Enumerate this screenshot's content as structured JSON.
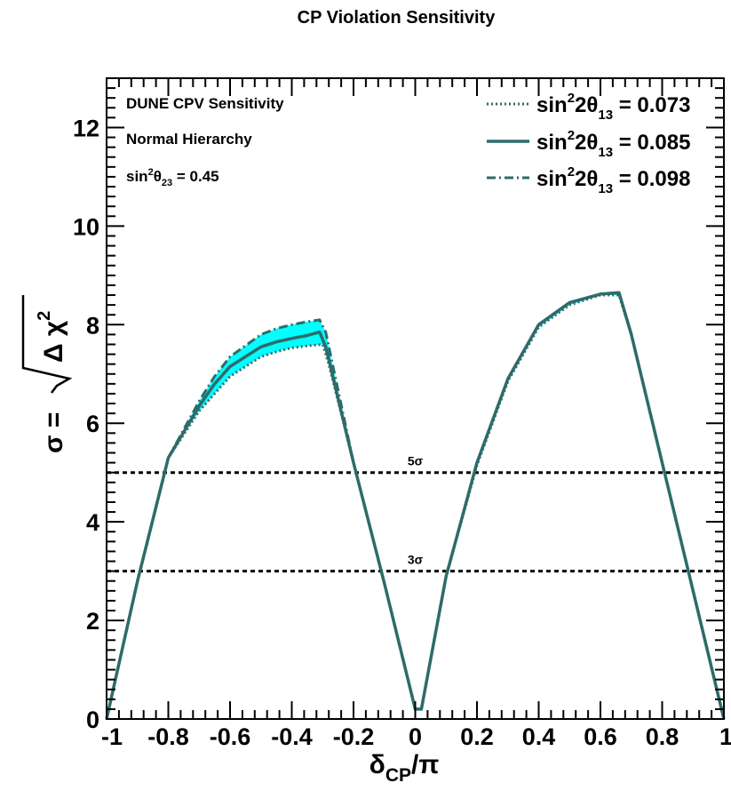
{
  "chart_data": {
    "type": "line",
    "title": "CP Violation Sensitivity",
    "xlabel": "δCP/π",
    "ylabel": "σ = √Δχ²",
    "xlim": [
      -1,
      1
    ],
    "ylim": [
      0,
      13
    ],
    "x_ticks": [
      "-1",
      "-0.8",
      "-0.6",
      "-0.4",
      "-0.2",
      "0",
      "0.2",
      "0.4",
      "0.6",
      "0.8",
      "1"
    ],
    "y_ticks": [
      "0",
      "2",
      "4",
      "6",
      "8",
      "10",
      "12"
    ],
    "annotations": [
      "DUNE CPV Sensitivity",
      "Normal Hierarchy",
      "sin²θ₂₃ = 0.45"
    ],
    "legend_position": "top-right",
    "band_color": "#00ffff",
    "line_color": "#2e6b6b",
    "thresholds": [
      {
        "label": "5σ",
        "value": 5
      },
      {
        "label": "3σ",
        "value": 3
      }
    ],
    "series": [
      {
        "name": "sin²2θ₁₃ = 0.073",
        "style": "dotted",
        "x": [
          -1.0,
          -0.9,
          -0.8,
          -0.7,
          -0.65,
          -0.6,
          -0.5,
          -0.45,
          -0.4,
          -0.35,
          -0.3,
          -0.28,
          -0.2,
          -0.1,
          0.0,
          0.02,
          0.1,
          0.2,
          0.3,
          0.4,
          0.5,
          0.6,
          0.66,
          0.7,
          0.8,
          0.9,
          1.0
        ],
        "values": [
          0.0,
          2.8,
          5.3,
          6.25,
          6.6,
          6.95,
          7.35,
          7.45,
          7.53,
          7.57,
          7.6,
          7.2,
          5.2,
          2.75,
          0.2,
          0.2,
          2.9,
          5.15,
          6.85,
          7.95,
          8.4,
          8.6,
          8.6,
          7.8,
          5.2,
          2.6,
          0.0
        ]
      },
      {
        "name": "sin²2θ₁₃ = 0.085",
        "style": "solid",
        "x": [
          -1.0,
          -0.9,
          -0.8,
          -0.7,
          -0.65,
          -0.6,
          -0.5,
          -0.45,
          -0.4,
          -0.35,
          -0.31,
          -0.29,
          -0.2,
          -0.1,
          0.0,
          0.02,
          0.1,
          0.2,
          0.3,
          0.4,
          0.5,
          0.6,
          0.66,
          0.7,
          0.8,
          0.9,
          1.0
        ],
        "values": [
          0.0,
          2.8,
          5.3,
          6.35,
          6.8,
          7.15,
          7.55,
          7.65,
          7.72,
          7.78,
          7.85,
          7.55,
          5.2,
          2.75,
          0.2,
          0.2,
          2.9,
          5.2,
          6.9,
          8.0,
          8.45,
          8.62,
          8.65,
          7.8,
          5.2,
          2.6,
          0.0
        ]
      },
      {
        "name": "sin²2θ₁₃ = 0.098",
        "style": "dashdot",
        "x": [
          -1.0,
          -0.9,
          -0.8,
          -0.7,
          -0.65,
          -0.6,
          -0.5,
          -0.45,
          -0.4,
          -0.35,
          -0.31,
          -0.29,
          -0.2,
          -0.1,
          0.0,
          0.02,
          0.1,
          0.2,
          0.3,
          0.4,
          0.5,
          0.6,
          0.66,
          0.7,
          0.8,
          0.9,
          1.0
        ],
        "values": [
          0.0,
          2.8,
          5.3,
          6.45,
          6.95,
          7.35,
          7.8,
          7.92,
          8.0,
          8.06,
          8.1,
          7.85,
          5.2,
          2.75,
          0.2,
          0.2,
          2.9,
          5.2,
          6.9,
          8.0,
          8.45,
          8.62,
          8.65,
          7.8,
          5.2,
          2.6,
          0.0
        ]
      }
    ]
  }
}
